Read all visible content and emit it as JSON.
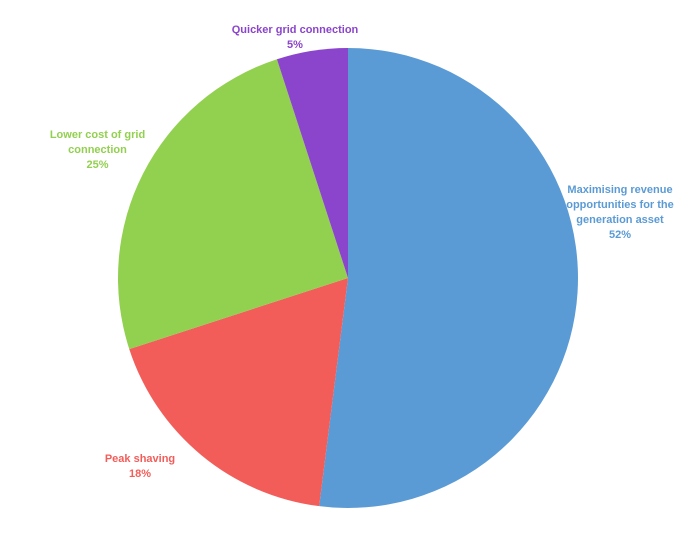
{
  "chart_data": {
    "type": "pie",
    "categories": [
      "Maximising revenue opportunities for the generation asset",
      "Peak shaving",
      "Lower cost of grid connection",
      "Quicker grid connection"
    ],
    "values": [
      52,
      18,
      25,
      5
    ],
    "value_labels": [
      "52%",
      "18%",
      "25%",
      "5%"
    ],
    "colors": [
      "#5b9bd5",
      "#f25d5a",
      "#92d050",
      "#8b44cc"
    ],
    "label_colors": [
      "#5b9bd5",
      "#f25d5a",
      "#92d050",
      "#8b44cc"
    ]
  }
}
